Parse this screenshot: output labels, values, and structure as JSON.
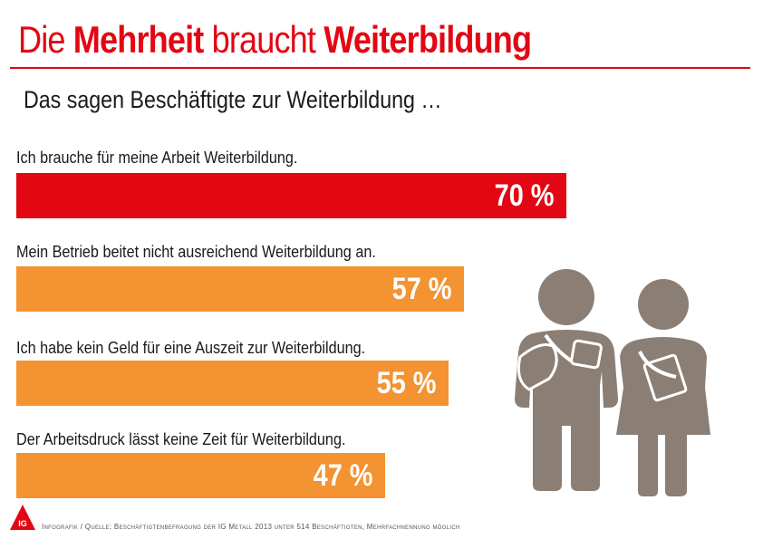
{
  "header": {
    "title_part1": "Die ",
    "title_bold1": "Mehrheit",
    "title_part2": " braucht ",
    "title_bold2": "Weiterbildung",
    "subtitle": "Das sagen Beschäftigte zur Weiterbildung …"
  },
  "chart_data": {
    "type": "bar",
    "orientation": "horizontal",
    "categories": [
      "Ich brauche für meine Arbeit Weiterbildung.",
      "Mein Betrieb beitet nicht ausreichend Weiterbildung an.",
      "Ich habe kein Geld für eine Auszeit zur Weiterbildung.",
      "Der Arbeitsdruck lässt keine Zeit für Weiterbildung."
    ],
    "values": [
      70,
      57,
      55,
      47
    ],
    "value_labels": [
      "70 %",
      "57 %",
      "55 %",
      "47 %"
    ],
    "xlim": [
      0,
      100
    ],
    "colors": [
      "#e30613",
      "#f39331",
      "#f39331",
      "#f39331"
    ],
    "grid": false,
    "legend": "none"
  },
  "footer": {
    "source": "Infografik / Quelle: Beschäftigtenbefragung der IG Metall 2013 unter 514 Beschäftigten, Mehrfachnennung möglich",
    "logo_text": "IG"
  },
  "colors": {
    "accent": "#e30613",
    "bar_secondary": "#f39331",
    "figures": "#8b7e74"
  },
  "icons": [
    "students-illustration",
    "igmetall-logo"
  ]
}
